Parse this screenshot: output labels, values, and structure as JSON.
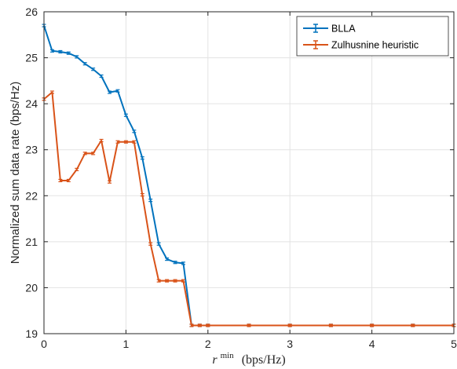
{
  "chart_data": {
    "type": "line",
    "xlabel": "r^min (bps/Hz)",
    "xlabel_parts": {
      "symbol": "r",
      "superscript": "min",
      "unit": "(bps/Hz)"
    },
    "ylabel": "Normalized sum data rate (bps/Hz)",
    "xlim": [
      0,
      5
    ],
    "ylim": [
      19,
      26
    ],
    "xticks": [
      0,
      1,
      2,
      3,
      4,
      5
    ],
    "yticks": [
      19,
      20,
      21,
      22,
      23,
      24,
      25,
      26
    ],
    "grid": true,
    "legend_position": "top-right",
    "series": [
      {
        "name": "BLLA",
        "color": "#0072BD",
        "x": [
          0,
          0.1,
          0.2,
          0.3,
          0.4,
          0.5,
          0.6,
          0.7,
          0.8,
          0.9,
          1.0,
          1.1,
          1.2,
          1.3,
          1.4,
          1.5,
          1.6,
          1.7,
          1.8,
          1.9,
          2.0,
          2.5,
          3.0,
          3.5,
          4.0,
          4.5,
          5.0
        ],
        "y": [
          25.7,
          25.15,
          25.13,
          25.1,
          25.02,
          24.87,
          24.75,
          24.6,
          24.25,
          24.28,
          23.75,
          23.4,
          22.82,
          21.9,
          20.95,
          20.62,
          20.55,
          20.53,
          19.18,
          19.18,
          19.18,
          19.18,
          19.18,
          19.18,
          19.18,
          19.18,
          19.18
        ]
      },
      {
        "name": "Zulhusnine heuristic",
        "color": "#D95319",
        "x": [
          0,
          0.1,
          0.2,
          0.3,
          0.4,
          0.5,
          0.6,
          0.7,
          0.8,
          0.9,
          1.0,
          1.1,
          1.2,
          1.3,
          1.4,
          1.5,
          1.6,
          1.7,
          1.8,
          1.9,
          2.0,
          2.5,
          3.0,
          3.5,
          4.0,
          4.5,
          5.0
        ],
        "y": [
          24.1,
          24.25,
          22.33,
          22.33,
          22.57,
          22.92,
          22.92,
          23.2,
          22.3,
          23.17,
          23.17,
          23.17,
          22.02,
          20.95,
          20.15,
          20.15,
          20.15,
          20.15,
          19.18,
          19.18,
          19.18,
          19.18,
          19.18,
          19.18,
          19.18,
          19.18,
          19.18
        ]
      }
    ]
  }
}
